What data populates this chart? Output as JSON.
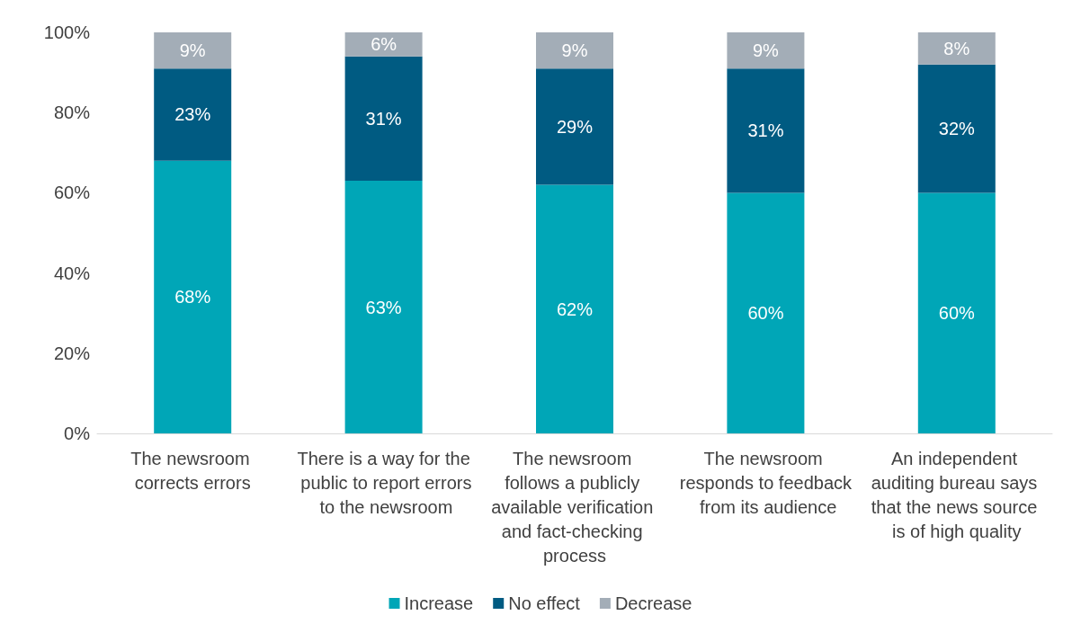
{
  "chart_data": {
    "type": "bar",
    "stacked": true,
    "categories": [
      "The newsroom corrects errors",
      "There is a way for the public to report errors to the newsroom",
      "The newsroom follows a publicly available verification and fact-checking process",
      "The newsroom responds to feedback from its audience",
      "An independent auditing bureau says that the news source is of high quality"
    ],
    "series": [
      {
        "name": "Increase",
        "color": "#00a6b7",
        "values": [
          68,
          63,
          62,
          60,
          60
        ],
        "value_labels": [
          "68%",
          "63%",
          "62%",
          "60%",
          "60%"
        ]
      },
      {
        "name": "No effect",
        "color": "#005b82",
        "values": [
          23,
          31,
          29,
          31,
          32
        ],
        "value_labels": [
          "23%",
          "31%",
          "29%",
          "31%",
          "32%"
        ]
      },
      {
        "name": "Decrease",
        "color": "#a3adb7",
        "values": [
          9,
          6,
          9,
          9,
          8
        ],
        "value_labels": [
          "9%",
          "6%",
          "9%",
          "9%",
          "8%"
        ]
      }
    ],
    "ylim": [
      0,
      100
    ],
    "yticks": [
      {
        "value": 0,
        "label": "0%"
      },
      {
        "value": 20,
        "label": "20%"
      },
      {
        "value": 40,
        "label": "40%"
      },
      {
        "value": 60,
        "label": "60%"
      },
      {
        "value": 80,
        "label": "80%"
      },
      {
        "value": 100,
        "label": "100%"
      }
    ],
    "grid": false,
    "legend": "bottom"
  }
}
